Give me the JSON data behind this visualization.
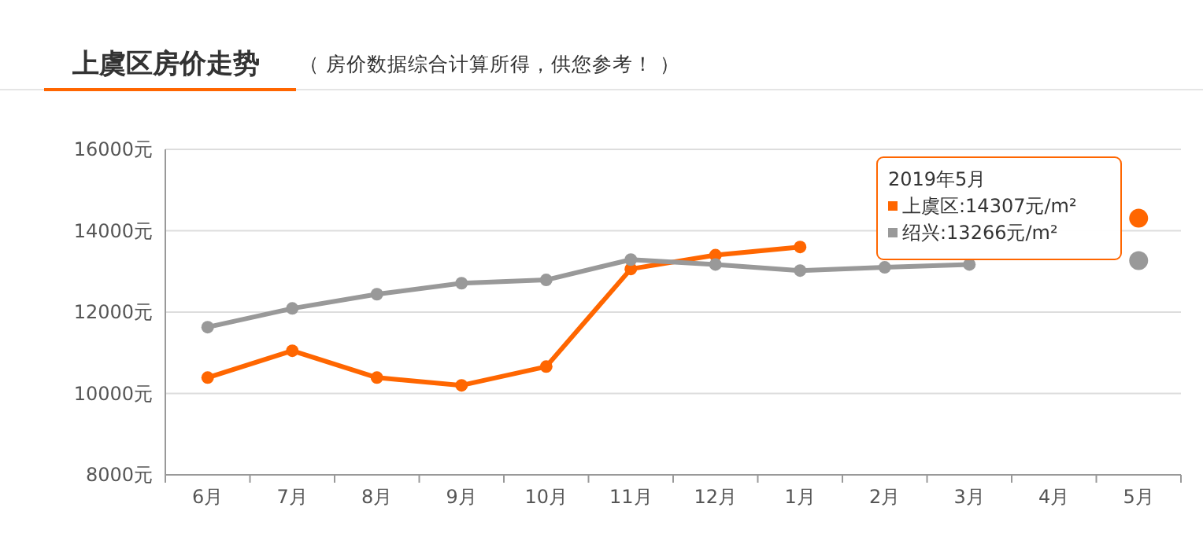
{
  "chart_data": {
    "type": "line",
    "title": "上虞区房价走势",
    "subtitle": "（ 房价数据综合计算所得，供您参考！ ）",
    "categories": [
      "6月",
      "7月",
      "8月",
      "9月",
      "10月",
      "11月",
      "12月",
      "1月",
      "2月",
      "3月",
      "4月",
      "5月"
    ],
    "series": [
      {
        "color": "#ff6600",
        "values": [
          10390,
          11050,
          10390,
          10200,
          10660,
          13060,
          13400,
          13600,
          null,
          null,
          null,
          14307
        ]
      },
      {
        "color": "#999999",
        "values": [
          11630,
          12090,
          12440,
          12710,
          12790,
          13290,
          13170,
          13020,
          13100,
          13170,
          null,
          13266
        ]
      }
    ],
    "ylim": [
      8000,
      16000
    ],
    "yticks": [
      {
        "value": 8000,
        "label": "8000元"
      },
      {
        "value": 10000,
        "label": "10000元"
      },
      {
        "value": 12000,
        "label": "12000元"
      },
      {
        "value": 14000,
        "label": "14000元"
      },
      {
        "value": 16000,
        "label": "16000元"
      }
    ],
    "grid": "y",
    "marker": "circle",
    "line_style": "solid",
    "annotations": [
      "2019年5月",
      "上虞区:14307元/m²",
      "绍兴:13266元/m²"
    ]
  }
}
